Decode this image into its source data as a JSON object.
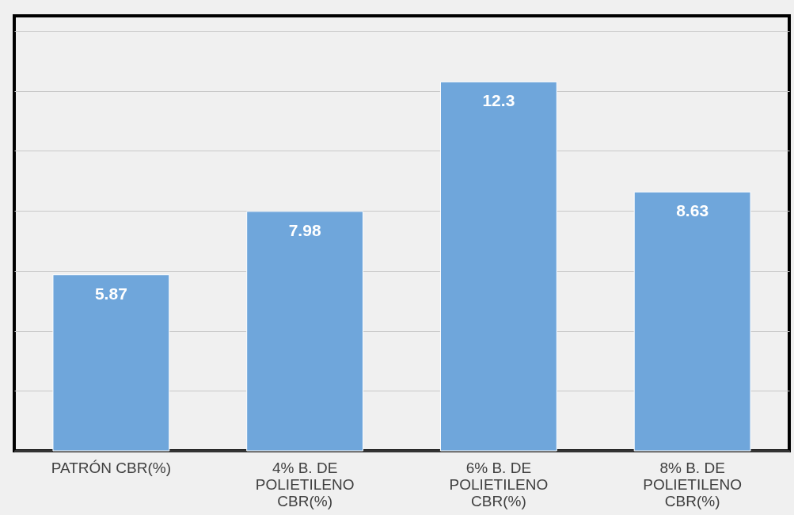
{
  "chart_data": {
    "type": "bar",
    "categories": [
      "PATRÓN CBR(%)",
      "4%  B. DE\nPOLIETILENO\nCBR(%)",
      "6% B. DE\nPOLIETILENO\nCBR(%)",
      "8% B. DE\nPOLIETILENO\nCBR(%)"
    ],
    "values": [
      5.87,
      7.98,
      12.3,
      8.63
    ],
    "color": "#6fa6db",
    "data_labels": true,
    "grid": "y",
    "ylim": [
      0,
      14.5
    ],
    "yticks": [
      {
        "value": 0,
        "label": null
      },
      {
        "value": 2,
        "label": null
      },
      {
        "value": 4,
        "label": null
      },
      {
        "value": 6,
        "label": null
      },
      {
        "value": 8,
        "label": null
      },
      {
        "value": 10,
        "label": null
      },
      {
        "value": 12,
        "label": null
      },
      {
        "value": 14,
        "label": null
      }
    ],
    "tick_labels": "x"
  }
}
